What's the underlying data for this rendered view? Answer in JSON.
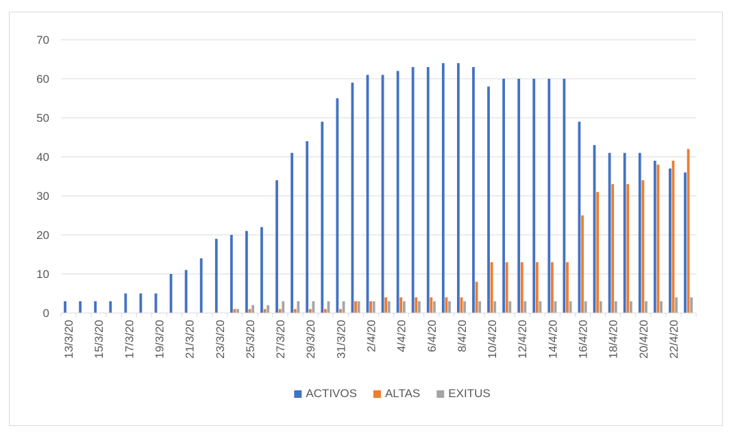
{
  "chart_data": {
    "type": "bar",
    "title": "",
    "xlabel": "",
    "ylabel": "",
    "ylim": [
      0,
      70
    ],
    "yticks": [
      "0",
      "10",
      "20",
      "30",
      "40",
      "50",
      "60",
      "70"
    ],
    "grid": true,
    "legend_position": "bottom",
    "categories": [
      "13/3/20",
      "14/3/20",
      "15/3/20",
      "16/3/20",
      "17/3/20",
      "18/3/20",
      "19/3/20",
      "20/3/20",
      "21/3/20",
      "22/3/20",
      "23/3/20",
      "24/3/20",
      "25/3/20",
      "26/3/20",
      "27/3/20",
      "28/3/20",
      "29/3/20",
      "30/3/20",
      "31/3/20",
      "1/4/20",
      "2/4/20",
      "3/4/20",
      "4/4/20",
      "5/4/20",
      "6/4/20",
      "7/4/20",
      "8/4/20",
      "9/4/20",
      "10/4/20",
      "11/4/20",
      "12/4/20",
      "13/4/20",
      "14/4/20",
      "15/4/20",
      "16/4/20",
      "17/4/20",
      "18/4/20",
      "19/4/20",
      "20/4/20",
      "21/4/20",
      "22/4/20",
      "23/4/20"
    ],
    "tick_labels": [
      "13/3/20",
      "15/3/20",
      "17/3/20",
      "19/3/20",
      "21/3/20",
      "23/3/20",
      "25/3/20",
      "27/3/20",
      "29/3/20",
      "31/3/20",
      "2/4/20",
      "4/4/20",
      "6/4/20",
      "8/4/20",
      "10/4/20",
      "12/4/20",
      "14/4/20",
      "16/4/20",
      "18/4/20",
      "20/4/20",
      "22/4/20"
    ],
    "series": [
      {
        "name": "ACTIVOS",
        "color": "#4472C4",
        "values": [
          3,
          3,
          3,
          3,
          5,
          5,
          5,
          10,
          11,
          14,
          19,
          20,
          21,
          22,
          34,
          41,
          44,
          49,
          55,
          59,
          61,
          61,
          62,
          63,
          63,
          64,
          64,
          63,
          58,
          60,
          60,
          60,
          60,
          60,
          49,
          43,
          41,
          41,
          41,
          39,
          37,
          36
        ]
      },
      {
        "name": "ALTAS",
        "color": "#ED7D31",
        "values": [
          0,
          0,
          0,
          0,
          0,
          0,
          0,
          0,
          0,
          0,
          0,
          1,
          1,
          1,
          1,
          1,
          1,
          1,
          1,
          3,
          3,
          4,
          4,
          4,
          4,
          4,
          4,
          8,
          13,
          13,
          13,
          13,
          13,
          13,
          25,
          31,
          33,
          33,
          34,
          38,
          39,
          42
        ]
      },
      {
        "name": "EXITUS",
        "color": "#A5A5A5",
        "values": [
          0,
          0,
          0,
          0,
          0,
          0,
          0,
          0,
          0,
          0,
          0,
          1,
          2,
          2,
          3,
          3,
          3,
          3,
          3,
          3,
          3,
          3,
          3,
          3,
          3,
          3,
          3,
          3,
          3,
          3,
          3,
          3,
          3,
          3,
          3,
          3,
          3,
          3,
          3,
          3,
          4,
          4
        ]
      }
    ]
  }
}
